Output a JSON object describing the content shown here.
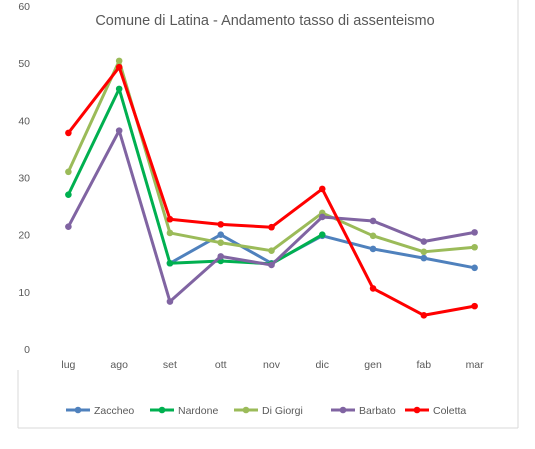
{
  "chart_data": {
    "type": "line",
    "title": "Comune di Latina - Andamento tasso di assenteismo",
    "xlabel": "",
    "ylabel": "",
    "categories": [
      "lug",
      "ago",
      "set",
      "ott",
      "nov",
      "dic",
      "gen",
      "fab",
      "mar"
    ],
    "ylim": [
      0,
      60
    ],
    "yticks": [
      0,
      10,
      20,
      30,
      40,
      50,
      60
    ],
    "grid": false,
    "legend_position": "bottom",
    "series": [
      {
        "name": "Zaccheo",
        "color": "#4f81bd",
        "values": [
          null,
          null,
          15.0,
          20.0,
          15.0,
          19.8,
          17.5,
          15.9,
          14.2
        ]
      },
      {
        "name": "Nardone",
        "color": "#00b050",
        "values": [
          27.0,
          45.5,
          15.0,
          15.4,
          14.9,
          20.0,
          null,
          null,
          null
        ]
      },
      {
        "name": "Di Giorgi",
        "color": "#9bbb59",
        "values": [
          31.0,
          50.4,
          20.3,
          18.6,
          17.2,
          23.8,
          19.8,
          17.0,
          17.8
        ]
      },
      {
        "name": "Barbato",
        "color": "#8064a2",
        "values": [
          21.4,
          38.2,
          8.3,
          16.2,
          14.7,
          23.1,
          22.4,
          18.8,
          20.4
        ]
      },
      {
        "name": "Coletta",
        "color": "#ff0000",
        "values": [
          37.8,
          49.3,
          22.7,
          21.8,
          21.3,
          28.0,
          10.6,
          5.9,
          7.5
        ]
      }
    ]
  }
}
